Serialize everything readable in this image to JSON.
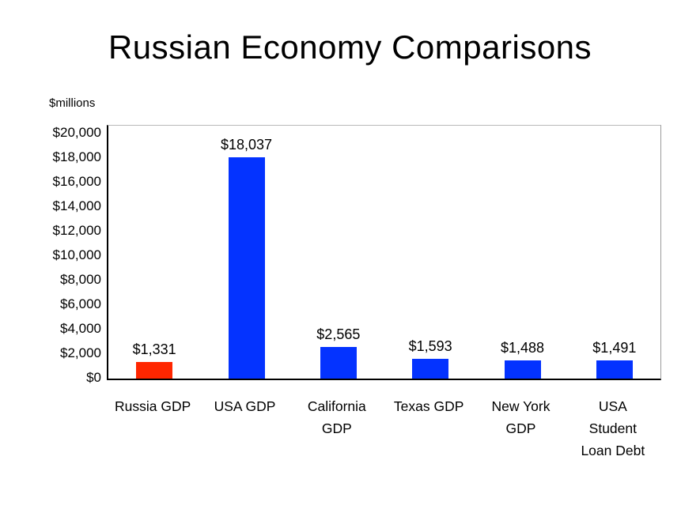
{
  "title": "Russian Economy Comparisons",
  "axis_unit_label": "$millions",
  "colors": {
    "bar_red": "#ff2600",
    "bar_blue": "#0433ff",
    "axis": "#000000"
  },
  "chart_data": {
    "type": "bar",
    "title": "Russian Economy Comparisons",
    "ylabel": "$millions",
    "xlabel": "",
    "categories": [
      "Russia GDP",
      "USA GDP",
      "California\nGDP",
      "Texas GDP",
      "New York\nGDP",
      "USA\nStudent\nLoan Debt"
    ],
    "values": [
      1331,
      18037,
      2565,
      1593,
      1488,
      1491
    ],
    "value_labels": [
      "$1,331",
      "$18,037",
      "$2,565",
      "$1,593",
      "$1,488",
      "$1,491"
    ],
    "bar_colors": [
      "#ff2600",
      "#0433ff",
      "#0433ff",
      "#0433ff",
      "#0433ff",
      "#0433ff"
    ],
    "ylim": [
      0,
      20000
    ],
    "ytick_step": 2000,
    "ytick_labels": [
      "$0",
      "$2,000",
      "$4,000",
      "$6,000",
      "$8,000",
      "$10,000",
      "$12,000",
      "$14,000",
      "$16,000",
      "$18,000",
      "$20,000"
    ],
    "grid": false,
    "legend": "none"
  }
}
